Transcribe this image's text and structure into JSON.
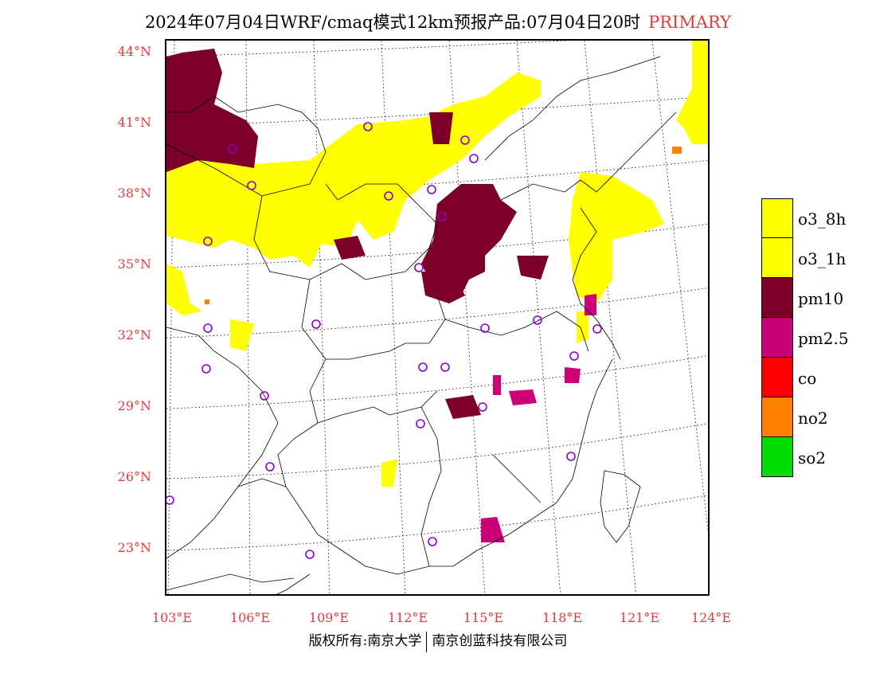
{
  "title": {
    "main": "2024年07月04日WRF/cmaq模式12km预报产品:07月04日20时",
    "tag": "PRIMARY"
  },
  "map": {
    "lat_labels": [
      "44°N",
      "41°N",
      "38°N",
      "35°N",
      "32°N",
      "29°N",
      "26°N",
      "23°N"
    ],
    "lon_labels": [
      "103°E",
      "106°E",
      "109°E",
      "112°E",
      "115°E",
      "118°E",
      "121°E",
      "124°E"
    ]
  },
  "legend": {
    "items": [
      {
        "label": "o3_8h",
        "color": "#ffff00"
      },
      {
        "label": "o3_1h",
        "color": "#ffff00"
      },
      {
        "label": "pm10",
        "color": "#7d0028"
      },
      {
        "label": "pm2.5",
        "color": "#cc0077"
      },
      {
        "label": "co",
        "color": "#ff0000"
      },
      {
        "label": "no2",
        "color": "#ff7f00"
      },
      {
        "label": "so2",
        "color": "#00dd00"
      }
    ]
  },
  "footer": {
    "left": "版权所有:南京大学",
    "right": "南京创蓝科技有限公司"
  }
}
